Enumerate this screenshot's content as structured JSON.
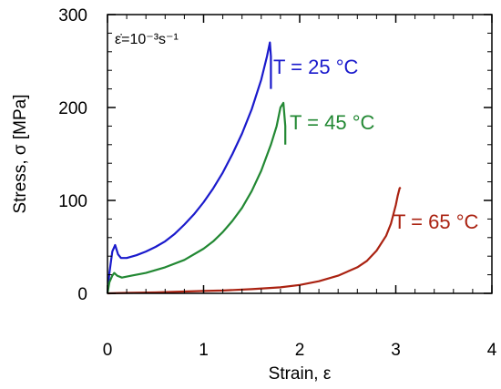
{
  "chart_data": {
    "type": "line",
    "xlabel": "Strain, ε",
    "ylabel": "Stress, σ  [MPa]",
    "xlim": [
      0,
      4
    ],
    "ylim": [
      0,
      300
    ],
    "x_ticks": [
      "0",
      "1",
      "2",
      "3",
      "4"
    ],
    "y_ticks": [
      "0",
      "100",
      "200",
      "300"
    ],
    "grid": false,
    "annotation": "ε̇=10⁻³s⁻¹",
    "series": [
      {
        "label": "T = 25 °C",
        "color": "#1a1acc",
        "points": [
          [
            0.0,
            0
          ],
          [
            0.02,
            22
          ],
          [
            0.05,
            45
          ],
          [
            0.08,
            52
          ],
          [
            0.11,
            42
          ],
          [
            0.14,
            38
          ],
          [
            0.2,
            38
          ],
          [
            0.3,
            41
          ],
          [
            0.4,
            45
          ],
          [
            0.5,
            50
          ],
          [
            0.6,
            56
          ],
          [
            0.7,
            64
          ],
          [
            0.8,
            74
          ],
          [
            0.9,
            85
          ],
          [
            1.0,
            98
          ],
          [
            1.1,
            113
          ],
          [
            1.2,
            130
          ],
          [
            1.3,
            150
          ],
          [
            1.4,
            172
          ],
          [
            1.5,
            198
          ],
          [
            1.6,
            230
          ],
          [
            1.66,
            255
          ],
          [
            1.69,
            270
          ],
          [
            1.7,
            255
          ],
          [
            1.7,
            220
          ]
        ]
      },
      {
        "label": "T = 45 °C",
        "color": "#228833",
        "points": [
          [
            0.0,
            0
          ],
          [
            0.02,
            12
          ],
          [
            0.05,
            19
          ],
          [
            0.07,
            22
          ],
          [
            0.1,
            19
          ],
          [
            0.15,
            17
          ],
          [
            0.25,
            19
          ],
          [
            0.4,
            22
          ],
          [
            0.6,
            28
          ],
          [
            0.8,
            36
          ],
          [
            1.0,
            48
          ],
          [
            1.1,
            56
          ],
          [
            1.2,
            66
          ],
          [
            1.3,
            78
          ],
          [
            1.4,
            92
          ],
          [
            1.5,
            110
          ],
          [
            1.6,
            132
          ],
          [
            1.7,
            160
          ],
          [
            1.76,
            180
          ],
          [
            1.8,
            200
          ],
          [
            1.83,
            205
          ],
          [
            1.85,
            180
          ],
          [
            1.85,
            160
          ]
        ]
      },
      {
        "label": "T = 65 °C",
        "color": "#aa2211",
        "points": [
          [
            0.0,
            0
          ],
          [
            0.2,
            0.5
          ],
          [
            0.5,
            1
          ],
          [
            0.8,
            2
          ],
          [
            1.0,
            2.5
          ],
          [
            1.2,
            3
          ],
          [
            1.5,
            4.5
          ],
          [
            1.8,
            6.5
          ],
          [
            2.0,
            9
          ],
          [
            2.2,
            13
          ],
          [
            2.4,
            19
          ],
          [
            2.6,
            28
          ],
          [
            2.7,
            35
          ],
          [
            2.8,
            46
          ],
          [
            2.9,
            62
          ],
          [
            2.95,
            75
          ],
          [
            3.0,
            95
          ],
          [
            3.02,
            105
          ],
          [
            3.04,
            113
          ],
          [
            3.05,
            114
          ]
        ]
      }
    ]
  }
}
